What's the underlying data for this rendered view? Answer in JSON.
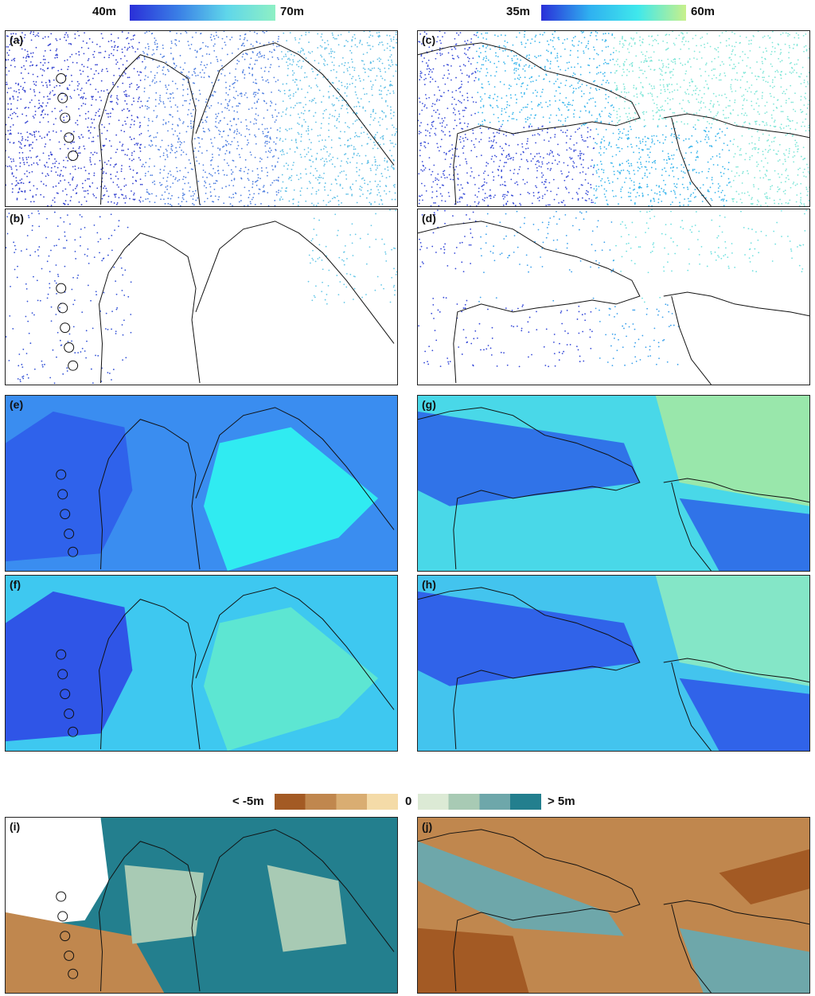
{
  "colorbars": {
    "left": {
      "min_label": "40m",
      "max_label": "70m",
      "colors": [
        "#2a2fd8",
        "#3a7fe6",
        "#5fd6ea",
        "#8ef0c4"
      ]
    },
    "right": {
      "min_label": "35m",
      "max_label": "60m",
      "colors": [
        "#2a2fd8",
        "#2fb0f0",
        "#3fe8ec",
        "#c8f08a"
      ]
    },
    "difference": {
      "low_label": "< -5m",
      "zero_label": "0",
      "high_label": "> 5m",
      "classes": [
        "#a35a24",
        "#c0874e",
        "#d9ad72",
        "#f4dba8",
        "#dcead5",
        "#a8cab4",
        "#6ea7aa",
        "#237f8e"
      ]
    }
  },
  "panels": [
    {
      "id": "a",
      "label": "(a)",
      "style": "points-dense",
      "palette": [
        "#3342d0",
        "#4f7fe0",
        "#5fbfe6"
      ]
    },
    {
      "id": "b",
      "label": "(b)",
      "style": "points-sparse",
      "palette": [
        "#3352d6",
        "#4f8fe4",
        "#66c8e8"
      ]
    },
    {
      "id": "c",
      "label": "(c)",
      "style": "points-dense",
      "palette": [
        "#3a4ed8",
        "#39b5ec",
        "#7fe6d8"
      ]
    },
    {
      "id": "d",
      "label": "(d)",
      "style": "points-sparse",
      "palette": [
        "#3347d8",
        "#3aa0ec",
        "#6fe0e0"
      ]
    },
    {
      "id": "e",
      "label": "(e)",
      "style": "surface",
      "palette": [
        "#2e60ea",
        "#3a8df0",
        "#2ff0f0"
      ]
    },
    {
      "id": "f",
      "label": "(f)",
      "style": "surface",
      "palette": [
        "#2e4fe6",
        "#3ec8f0",
        "#5fe8d0"
      ]
    },
    {
      "id": "g",
      "label": "(g)",
      "style": "surface",
      "palette": [
        "#2f6ee8",
        "#49d8e8",
        "#9ee8a8"
      ]
    },
    {
      "id": "h",
      "label": "(h)",
      "style": "surface",
      "palette": [
        "#2f5ee8",
        "#43c4ee",
        "#88e8c4"
      ]
    },
    {
      "id": "i",
      "label": "(i)",
      "style": "difference",
      "palette": [
        "#237f8e",
        "#a8cab4",
        "#c0874e"
      ]
    },
    {
      "id": "j",
      "label": "(j)",
      "style": "difference",
      "palette": [
        "#c0874e",
        "#a35a24",
        "#6ea7aa"
      ]
    }
  ]
}
